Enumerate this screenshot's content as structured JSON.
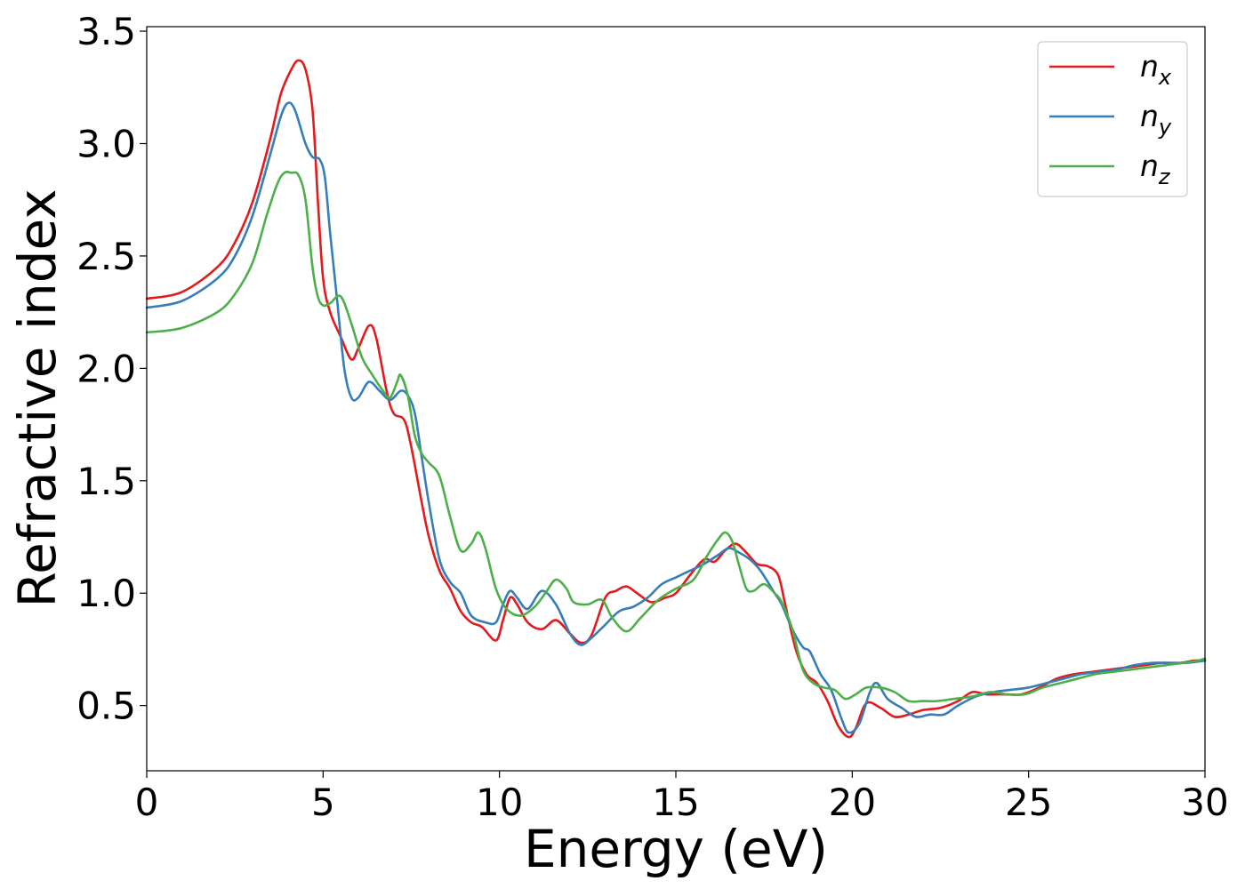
{
  "chart_data": {
    "type": "line",
    "xlabel": "Energy (eV)",
    "ylabel": "Refractive index",
    "xlim": [
      0,
      30
    ],
    "ylim": [
      0.21,
      3.52
    ],
    "xticks": [
      0,
      5,
      10,
      15,
      20,
      25,
      30
    ],
    "xtick_labels": [
      "0",
      "5",
      "10",
      "15",
      "20",
      "25",
      "30"
    ],
    "yticks": [
      0.5,
      1.0,
      1.5,
      2.0,
      2.5,
      3.0,
      3.5
    ],
    "ytick_labels": [
      "0.5",
      "1.0",
      "1.5",
      "2.0",
      "2.5",
      "3.0",
      "3.5"
    ],
    "grid": false,
    "legend_position": "top-right",
    "series": [
      {
        "name": "n_x",
        "label_base": "n",
        "label_sub": "x",
        "color": "#e41a1c",
        "x": [
          0,
          1,
          2,
          2.5,
          3,
          3.5,
          3.8,
          4.1,
          4.3,
          4.5,
          4.7,
          4.85,
          5.0,
          5.2,
          5.5,
          5.8,
          6.0,
          6.3,
          6.5,
          6.8,
          7.0,
          7.3,
          7.5,
          7.8,
          8.0,
          8.3,
          8.6,
          8.9,
          9.2,
          9.5,
          9.9,
          10.1,
          10.3,
          10.5,
          10.8,
          11.2,
          11.6,
          12.0,
          12.3,
          12.6,
          13.0,
          13.3,
          13.6,
          13.9,
          14.3,
          14.7,
          15.0,
          15.4,
          15.8,
          16.1,
          16.4,
          16.7,
          17.0,
          17.3,
          17.6,
          17.9,
          18.1,
          18.4,
          18.7,
          19.0,
          19.3,
          19.6,
          19.9,
          20.1,
          20.4,
          20.8,
          21.2,
          21.6,
          22.0,
          22.5,
          23.0,
          23.4,
          23.8,
          24.3,
          24.8,
          25.3,
          25.8,
          26.3,
          26.8,
          27.3,
          27.8,
          28.3,
          28.8,
          29.3,
          29.7,
          30.0
        ],
        "values": [
          2.31,
          2.34,
          2.45,
          2.56,
          2.74,
          3.02,
          3.22,
          3.33,
          3.37,
          3.33,
          3.15,
          2.75,
          2.4,
          2.25,
          2.14,
          2.04,
          2.09,
          2.19,
          2.14,
          1.9,
          1.8,
          1.77,
          1.65,
          1.4,
          1.25,
          1.1,
          1.02,
          0.92,
          0.87,
          0.85,
          0.79,
          0.88,
          0.98,
          0.95,
          0.87,
          0.84,
          0.88,
          0.82,
          0.78,
          0.81,
          0.98,
          1.01,
          1.03,
          1.0,
          0.96,
          0.98,
          1.0,
          1.08,
          1.15,
          1.14,
          1.19,
          1.22,
          1.18,
          1.13,
          1.12,
          1.08,
          0.95,
          0.75,
          0.64,
          0.6,
          0.52,
          0.41,
          0.36,
          0.4,
          0.51,
          0.49,
          0.45,
          0.46,
          0.48,
          0.49,
          0.52,
          0.56,
          0.55,
          0.55,
          0.55,
          0.58,
          0.62,
          0.64,
          0.65,
          0.66,
          0.67,
          0.68,
          0.69,
          0.69,
          0.7,
          0.7
        ]
      },
      {
        "name": "n_y",
        "label_base": "n",
        "label_sub": "y",
        "color": "#377eb8",
        "x": [
          0,
          1,
          2,
          2.5,
          3,
          3.5,
          3.8,
          4.0,
          4.2,
          4.5,
          4.7,
          4.9,
          5.05,
          5.2,
          5.4,
          5.6,
          5.8,
          6.0,
          6.3,
          6.6,
          6.9,
          7.2,
          7.4,
          7.6,
          7.8,
          8.0,
          8.3,
          8.6,
          8.9,
          9.2,
          9.6,
          9.9,
          10.1,
          10.3,
          10.5,
          10.8,
          11.2,
          11.6,
          12.0,
          12.3,
          12.6,
          13.0,
          13.4,
          13.8,
          14.2,
          14.6,
          15.0,
          15.4,
          15.8,
          16.2,
          16.5,
          16.8,
          17.1,
          17.4,
          17.8,
          18.0,
          18.3,
          18.6,
          18.8,
          19.1,
          19.4,
          19.7,
          19.9,
          20.2,
          20.5,
          20.7,
          21.0,
          21.4,
          21.8,
          22.2,
          22.6,
          23.0,
          23.5,
          24.0,
          24.5,
          25.0,
          25.5,
          26.0,
          26.5,
          27.0,
          27.5,
          28.0,
          28.5,
          29.0,
          29.5,
          30.0
        ],
        "values": [
          2.27,
          2.3,
          2.4,
          2.5,
          2.68,
          2.95,
          3.12,
          3.18,
          3.15,
          3.0,
          2.94,
          2.93,
          2.85,
          2.6,
          2.3,
          2.0,
          1.87,
          1.87,
          1.94,
          1.9,
          1.86,
          1.9,
          1.88,
          1.8,
          1.6,
          1.4,
          1.15,
          1.05,
          1.0,
          0.9,
          0.87,
          0.87,
          0.95,
          1.01,
          0.98,
          0.93,
          1.01,
          0.95,
          0.82,
          0.77,
          0.8,
          0.86,
          0.92,
          0.94,
          0.98,
          1.04,
          1.07,
          1.1,
          1.13,
          1.17,
          1.2,
          1.18,
          1.15,
          1.1,
          1.0,
          0.95,
          0.84,
          0.76,
          0.74,
          0.64,
          0.57,
          0.44,
          0.38,
          0.42,
          0.56,
          0.6,
          0.53,
          0.49,
          0.45,
          0.46,
          0.46,
          0.5,
          0.54,
          0.56,
          0.57,
          0.58,
          0.6,
          0.62,
          0.64,
          0.65,
          0.66,
          0.68,
          0.69,
          0.69,
          0.69,
          0.7
        ]
      },
      {
        "name": "n_z",
        "label_base": "n",
        "label_sub": "z",
        "color": "#4daf4a",
        "x": [
          0,
          1,
          2,
          2.5,
          3,
          3.4,
          3.7,
          3.9,
          4.1,
          4.3,
          4.5,
          4.7,
          4.85,
          5.0,
          5.2,
          5.5,
          5.8,
          6.1,
          6.4,
          6.7,
          6.9,
          7.1,
          7.2,
          7.4,
          7.6,
          7.8,
          8.0,
          8.3,
          8.6,
          8.9,
          9.2,
          9.4,
          9.6,
          9.9,
          10.2,
          10.6,
          11.0,
          11.3,
          11.6,
          11.9,
          12.1,
          12.5,
          12.9,
          13.2,
          13.6,
          14.0,
          14.5,
          15.0,
          15.5,
          15.9,
          16.2,
          16.4,
          16.6,
          16.8,
          17.0,
          17.2,
          17.5,
          17.8,
          18.0,
          18.3,
          18.6,
          18.9,
          19.2,
          19.5,
          19.8,
          20.1,
          20.4,
          20.8,
          21.2,
          21.6,
          22.0,
          22.4,
          22.9,
          23.4,
          23.9,
          24.4,
          24.9,
          25.4,
          25.9,
          26.4,
          26.9,
          27.4,
          27.9,
          28.4,
          28.9,
          29.4,
          29.8,
          30.0
        ],
        "values": [
          2.16,
          2.18,
          2.25,
          2.33,
          2.47,
          2.68,
          2.82,
          2.87,
          2.87,
          2.86,
          2.75,
          2.45,
          2.32,
          2.28,
          2.29,
          2.32,
          2.2,
          2.05,
          1.97,
          1.9,
          1.87,
          1.94,
          1.97,
          1.88,
          1.7,
          1.62,
          1.58,
          1.52,
          1.34,
          1.19,
          1.22,
          1.27,
          1.2,
          1.02,
          0.93,
          0.9,
          0.94,
          1.0,
          1.06,
          1.02,
          0.96,
          0.95,
          0.97,
          0.89,
          0.83,
          0.89,
          0.97,
          1.02,
          1.06,
          1.17,
          1.24,
          1.27,
          1.23,
          1.12,
          1.02,
          1.01,
          1.04,
          1.0,
          0.96,
          0.84,
          0.66,
          0.6,
          0.58,
          0.57,
          0.53,
          0.55,
          0.58,
          0.58,
          0.56,
          0.52,
          0.52,
          0.52,
          0.53,
          0.54,
          0.56,
          0.55,
          0.55,
          0.58,
          0.6,
          0.62,
          0.64,
          0.65,
          0.66,
          0.67,
          0.68,
          0.69,
          0.7,
          0.71
        ]
      }
    ]
  }
}
